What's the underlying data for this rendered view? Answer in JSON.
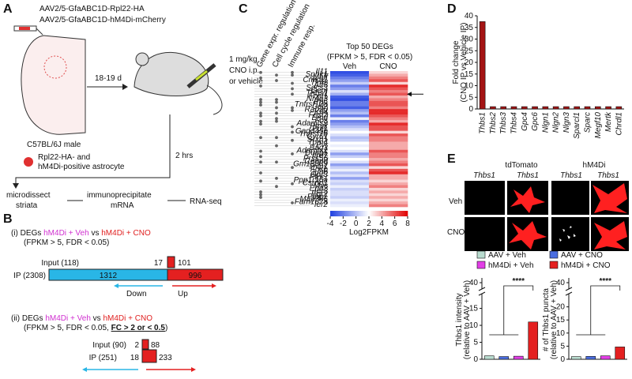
{
  "panel_labels": [
    "A",
    "B",
    "C",
    "D",
    "E"
  ],
  "panel_a": {
    "vectors": [
      "AAV2/5-GfaABC1D-Rpl22-HA",
      "AAV2/5-GfaABC1D-hM4Di-mCherry"
    ],
    "interval": "18-19 d",
    "dose": [
      "1 mg/kg",
      "CNO i.p.",
      "or vehicle"
    ],
    "strain": "C57BL/6J male",
    "cell_note": [
      "Rpl22-HA- and",
      "hM4Di-positive astrocyte"
    ],
    "wait": "2 hrs",
    "steps": [
      [
        "microdissect",
        "striata"
      ],
      [
        "immunoprecipitate",
        "mRNA"
      ],
      [
        "RNA-seq"
      ]
    ]
  },
  "panel_b": {
    "comparisons": [
      {
        "index": "(i)",
        "prefix": "DEGs",
        "group_a": "hM4Di + Veh",
        "vs": "vs",
        "group_b": "hM4Di + CNO",
        "criteria": "(FPKM > 5, FDR < 0.05)",
        "input": "Input (118)",
        "input_down": "17",
        "input_up": "101",
        "ip": "IP (2308)",
        "ip_down": "1312",
        "ip_up": "996"
      },
      {
        "index": "(ii)",
        "prefix": "DEGs",
        "group_a": "hM4Di + Veh",
        "vs": "vs",
        "group_b": "hM4Di + CNO",
        "criteria": "(FPKM > 5, FDR < 0.05, ",
        "criteria_emph": "FC > 2 or < 0.5",
        "criteria_end": ")",
        "input": "Input (90)",
        "input_down": "2",
        "input_up": "88",
        "ip": "IP (251)",
        "ip_down": "18",
        "ip_up": "233"
      }
    ],
    "down": "Down",
    "up": "Up"
  },
  "panel_e": {
    "markers": [
      "tdTomato",
      "hM4Di"
    ],
    "stain": [
      "Thbs1",
      "Thbs1",
      "Thbs1",
      "Thbs1"
    ],
    "conditions": [
      "Veh",
      "CNO"
    ],
    "groups": [
      {
        "name": "AAV + Veh",
        "color": "#b9dccf"
      },
      {
        "name": "AAV + CNO",
        "color": "#4a6de0"
      },
      {
        "name": "hM4Di + Veh",
        "color": "#e23ee6"
      },
      {
        "name": "hM4Di + CNO",
        "color": "#e42020"
      }
    ]
  },
  "chart_data": [
    {
      "type": "heatmap",
      "title": "Top 50 DEGs",
      "subtitle": "(FPKM > 5, FDR < 0.05)",
      "categories": [
        "Il11",
        "Sphk1",
        "Maff",
        "Cmklr1",
        "Tinf2",
        "Atf3",
        "Socs3",
        "Gem",
        "Thbs1",
        "Fosl1",
        "Nr4a3",
        "Pp6",
        "Tnfrsf12a",
        "Ccl2",
        "Rab20",
        "Klf4",
        "Fosl2",
        "Emd",
        "Fos",
        "Adamts9",
        "Ptrvk",
        "Ppl1",
        "Gadd45b",
        "Tnfrsf1b",
        "Cyr61",
        "Srxn1",
        "Tpm4",
        "Pvr",
        "Bag3",
        "Adamts1",
        "Dusp5",
        "Ifrd1",
        "Prss56",
        "Cebpd",
        "Gm13889",
        "Tnip1",
        "Fosb",
        "Junb",
        "Gpr3",
        "Ptgcr",
        "Ppp1r15a",
        "Csrnp1",
        "Myc",
        "Ehd2",
        "Ier3",
        "Egr2",
        "Ptbp1",
        "Map3k6",
        "Fam167a",
        "Ier2"
      ],
      "series": [
        {
          "name": "Veh",
          "values": [
            -3.5,
            -3,
            -2,
            -1,
            0.5,
            -2,
            -1,
            1,
            -0.5,
            -3,
            -3.5,
            -2,
            -2,
            -3,
            -1,
            0,
            -2,
            1.5,
            -2,
            -1,
            0,
            1,
            2,
            1,
            0,
            0.5,
            2,
            1.5,
            2,
            1,
            -1,
            0.5,
            2,
            1,
            -1,
            0.5,
            1.5,
            0,
            1,
            -1,
            1,
            0.5,
            1.5,
            0.5,
            1,
            1,
            0.5,
            1.5,
            1,
            1.5
          ]
        },
        {
          "name": "CNO",
          "values": [
            3,
            4,
            5,
            6,
            3,
            7,
            6,
            5,
            6,
            4,
            5,
            6,
            6,
            5,
            7,
            7,
            6,
            5,
            4,
            7,
            6,
            6,
            3,
            6,
            5,
            5,
            4,
            4,
            4,
            6,
            5,
            5,
            4,
            5,
            6,
            3,
            6,
            7,
            4,
            4,
            3,
            4,
            5,
            3,
            4,
            3,
            4,
            3,
            4,
            5
          ]
        }
      ],
      "annotations": [
        {
          "name": "Gene expr. regulation",
          "rows": [
            0,
            2,
            5,
            10,
            11,
            12,
            15,
            16,
            18,
            19,
            24,
            29,
            31,
            33,
            37,
            40,
            44,
            45,
            46
          ]
        },
        {
          "name": "Cell cycle regulation",
          "rows": [
            1,
            3,
            10,
            11,
            13,
            15,
            17,
            18,
            24,
            27,
            33,
            39,
            42
          ]
        },
        {
          "name": "Immune resp.",
          "rows": [
            0,
            1,
            4,
            6,
            8,
            13,
            14,
            20,
            22,
            25,
            30,
            35,
            41,
            48
          ]
        }
      ],
      "clim": [
        -4,
        8
      ],
      "cticks": [
        -4,
        -2,
        0,
        2,
        4,
        6,
        8
      ],
      "colorbar_label": "Log2FPKM",
      "colors": [
        "#1f3fe0",
        "#ffffff",
        "#e00000"
      ]
    },
    {
      "type": "bar",
      "categories": [
        "Thbs1",
        "Thbs2",
        "Thbs3",
        "Thbs4",
        "Gpc4",
        "Gpc6",
        "Nlgn1",
        "Nlgn2",
        "Nlgn3",
        "Sparcl1",
        "Sparc",
        "Megf10",
        "Mertk",
        "Chrdl1"
      ],
      "values": [
        37.5,
        1,
        1,
        1,
        1,
        1,
        1,
        1,
        1,
        1,
        1,
        1,
        1,
        1
      ],
      "color": "#a41414",
      "ylim": [
        0,
        40
      ],
      "yticks": [
        0,
        5,
        10,
        15,
        20,
        25,
        30,
        35,
        40
      ],
      "y_label": [
        "Fold change",
        "(CNO IP vs Vehicle IP)"
      ]
    },
    {
      "type": "broken-bar",
      "values": [
        1,
        0.8,
        0.9,
        11
      ],
      "ylim": [
        0,
        17
      ],
      "yticks": [
        0,
        5,
        10,
        15
      ],
      "upper_yticks": [
        40
      ],
      "y_label": [
        "Thbs1 intensity",
        "(relative to AAV + Veh)"
      ],
      "annotation": "****"
    },
    {
      "type": "broken-bar",
      "values": [
        1,
        1.1,
        1.3,
        4.7
      ],
      "ylim": [
        0,
        22
      ],
      "yticks": [
        0,
        5,
        10,
        15,
        20
      ],
      "upper_yticks": [
        40
      ],
      "y_label": [
        "# of Thbs1 puncta",
        "(relative to AAV + Veh)"
      ],
      "annotation": "****"
    }
  ]
}
